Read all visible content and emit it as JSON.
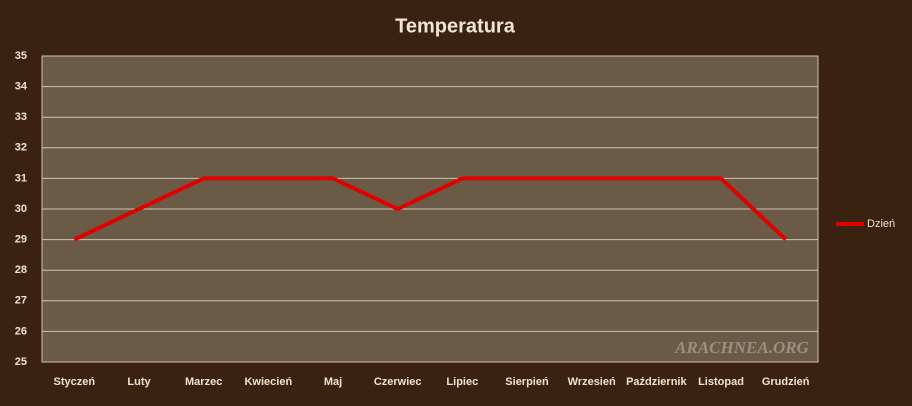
{
  "chart_data": {
    "type": "line",
    "title": "Temperatura",
    "categories": [
      "Styczeń",
      "Luty",
      "Marzec",
      "Kwiecień",
      "Maj",
      "Czerwiec",
      "Lipiec",
      "Sierpień",
      "Wrzesień",
      "Październik",
      "Listopad",
      "Grudzień"
    ],
    "series": [
      {
        "name": "Dzień",
        "color": "#e00000",
        "values": [
          29,
          30,
          31,
          31,
          31,
          30,
          31,
          31,
          31,
          31,
          31,
          29
        ]
      }
    ],
    "ylim": [
      25,
      35
    ],
    "yticks": [
      25,
      26,
      27,
      28,
      29,
      30,
      31,
      32,
      33,
      34,
      35
    ],
    "grid": true,
    "legend": "right",
    "watermark": "ARACHNEA.ORG"
  }
}
